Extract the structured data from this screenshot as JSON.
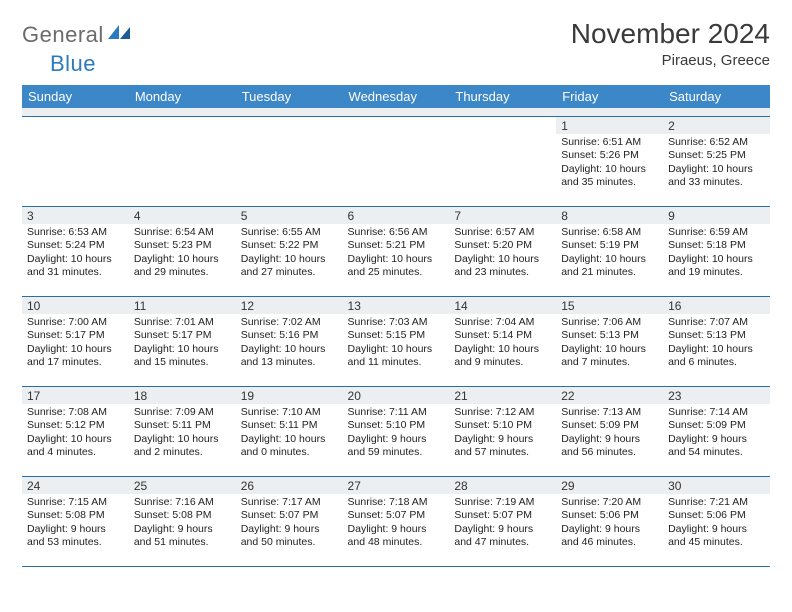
{
  "brand": {
    "text1": "General",
    "text2": "Blue"
  },
  "title": "November 2024",
  "location": "Piraeus, Greece",
  "colors": {
    "header_bg": "#3b87c8",
    "header_text": "#ffffff",
    "daynum_bg": "#eceff2",
    "border": "#2a6ca6",
    "logo_gray": "#6b6b6b",
    "logo_blue": "#2a7bbf"
  },
  "dow": [
    "Sunday",
    "Monday",
    "Tuesday",
    "Wednesday",
    "Thursday",
    "Friday",
    "Saturday"
  ],
  "weeks": [
    [
      null,
      null,
      null,
      null,
      null,
      {
        "n": "1",
        "sr": "6:51 AM",
        "ss": "5:26 PM",
        "dl": "10 hours and 35 minutes."
      },
      {
        "n": "2",
        "sr": "6:52 AM",
        "ss": "5:25 PM",
        "dl": "10 hours and 33 minutes."
      }
    ],
    [
      {
        "n": "3",
        "sr": "6:53 AM",
        "ss": "5:24 PM",
        "dl": "10 hours and 31 minutes."
      },
      {
        "n": "4",
        "sr": "6:54 AM",
        "ss": "5:23 PM",
        "dl": "10 hours and 29 minutes."
      },
      {
        "n": "5",
        "sr": "6:55 AM",
        "ss": "5:22 PM",
        "dl": "10 hours and 27 minutes."
      },
      {
        "n": "6",
        "sr": "6:56 AM",
        "ss": "5:21 PM",
        "dl": "10 hours and 25 minutes."
      },
      {
        "n": "7",
        "sr": "6:57 AM",
        "ss": "5:20 PM",
        "dl": "10 hours and 23 minutes."
      },
      {
        "n": "8",
        "sr": "6:58 AM",
        "ss": "5:19 PM",
        "dl": "10 hours and 21 minutes."
      },
      {
        "n": "9",
        "sr": "6:59 AM",
        "ss": "5:18 PM",
        "dl": "10 hours and 19 minutes."
      }
    ],
    [
      {
        "n": "10",
        "sr": "7:00 AM",
        "ss": "5:17 PM",
        "dl": "10 hours and 17 minutes."
      },
      {
        "n": "11",
        "sr": "7:01 AM",
        "ss": "5:17 PM",
        "dl": "10 hours and 15 minutes."
      },
      {
        "n": "12",
        "sr": "7:02 AM",
        "ss": "5:16 PM",
        "dl": "10 hours and 13 minutes."
      },
      {
        "n": "13",
        "sr": "7:03 AM",
        "ss": "5:15 PM",
        "dl": "10 hours and 11 minutes."
      },
      {
        "n": "14",
        "sr": "7:04 AM",
        "ss": "5:14 PM",
        "dl": "10 hours and 9 minutes."
      },
      {
        "n": "15",
        "sr": "7:06 AM",
        "ss": "5:13 PM",
        "dl": "10 hours and 7 minutes."
      },
      {
        "n": "16",
        "sr": "7:07 AM",
        "ss": "5:13 PM",
        "dl": "10 hours and 6 minutes."
      }
    ],
    [
      {
        "n": "17",
        "sr": "7:08 AM",
        "ss": "5:12 PM",
        "dl": "10 hours and 4 minutes."
      },
      {
        "n": "18",
        "sr": "7:09 AM",
        "ss": "5:11 PM",
        "dl": "10 hours and 2 minutes."
      },
      {
        "n": "19",
        "sr": "7:10 AM",
        "ss": "5:11 PM",
        "dl": "10 hours and 0 minutes."
      },
      {
        "n": "20",
        "sr": "7:11 AM",
        "ss": "5:10 PM",
        "dl": "9 hours and 59 minutes."
      },
      {
        "n": "21",
        "sr": "7:12 AM",
        "ss": "5:10 PM",
        "dl": "9 hours and 57 minutes."
      },
      {
        "n": "22",
        "sr": "7:13 AM",
        "ss": "5:09 PM",
        "dl": "9 hours and 56 minutes."
      },
      {
        "n": "23",
        "sr": "7:14 AM",
        "ss": "5:09 PM",
        "dl": "9 hours and 54 minutes."
      }
    ],
    [
      {
        "n": "24",
        "sr": "7:15 AM",
        "ss": "5:08 PM",
        "dl": "9 hours and 53 minutes."
      },
      {
        "n": "25",
        "sr": "7:16 AM",
        "ss": "5:08 PM",
        "dl": "9 hours and 51 minutes."
      },
      {
        "n": "26",
        "sr": "7:17 AM",
        "ss": "5:07 PM",
        "dl": "9 hours and 50 minutes."
      },
      {
        "n": "27",
        "sr": "7:18 AM",
        "ss": "5:07 PM",
        "dl": "9 hours and 48 minutes."
      },
      {
        "n": "28",
        "sr": "7:19 AM",
        "ss": "5:07 PM",
        "dl": "9 hours and 47 minutes."
      },
      {
        "n": "29",
        "sr": "7:20 AM",
        "ss": "5:06 PM",
        "dl": "9 hours and 46 minutes."
      },
      {
        "n": "30",
        "sr": "7:21 AM",
        "ss": "5:06 PM",
        "dl": "9 hours and 45 minutes."
      }
    ]
  ],
  "labels": {
    "sunrise": "Sunrise: ",
    "sunset": "Sunset: ",
    "daylight": "Daylight: "
  }
}
